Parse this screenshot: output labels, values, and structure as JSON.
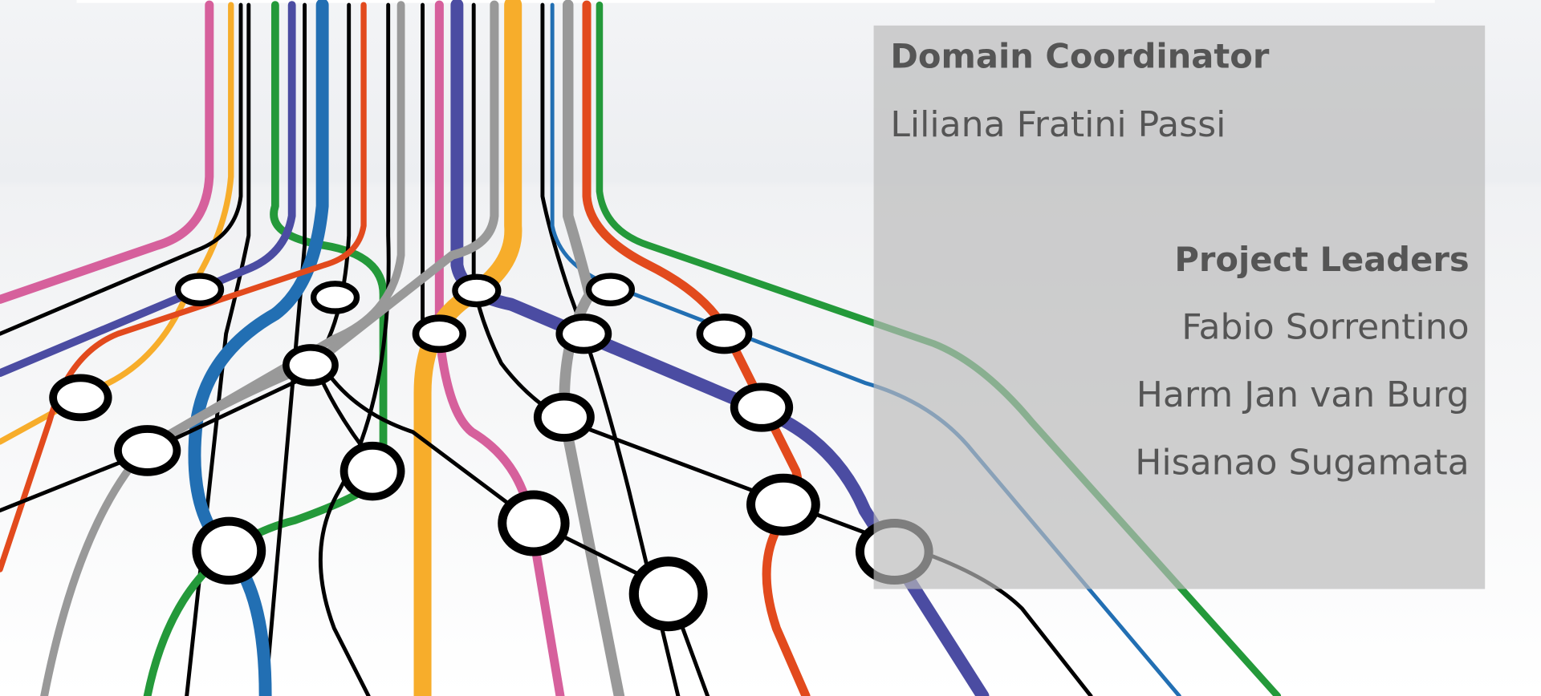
{
  "panel": {
    "coordinator_heading": "Domain Coordinator",
    "coordinator": "Liliana Fratini Passi",
    "leaders_heading": "Project Leaders",
    "leaders": [
      "Fabio Sorrentino",
      "Harm Jan van Burg",
      "Hisanao Sugamata"
    ]
  }
}
